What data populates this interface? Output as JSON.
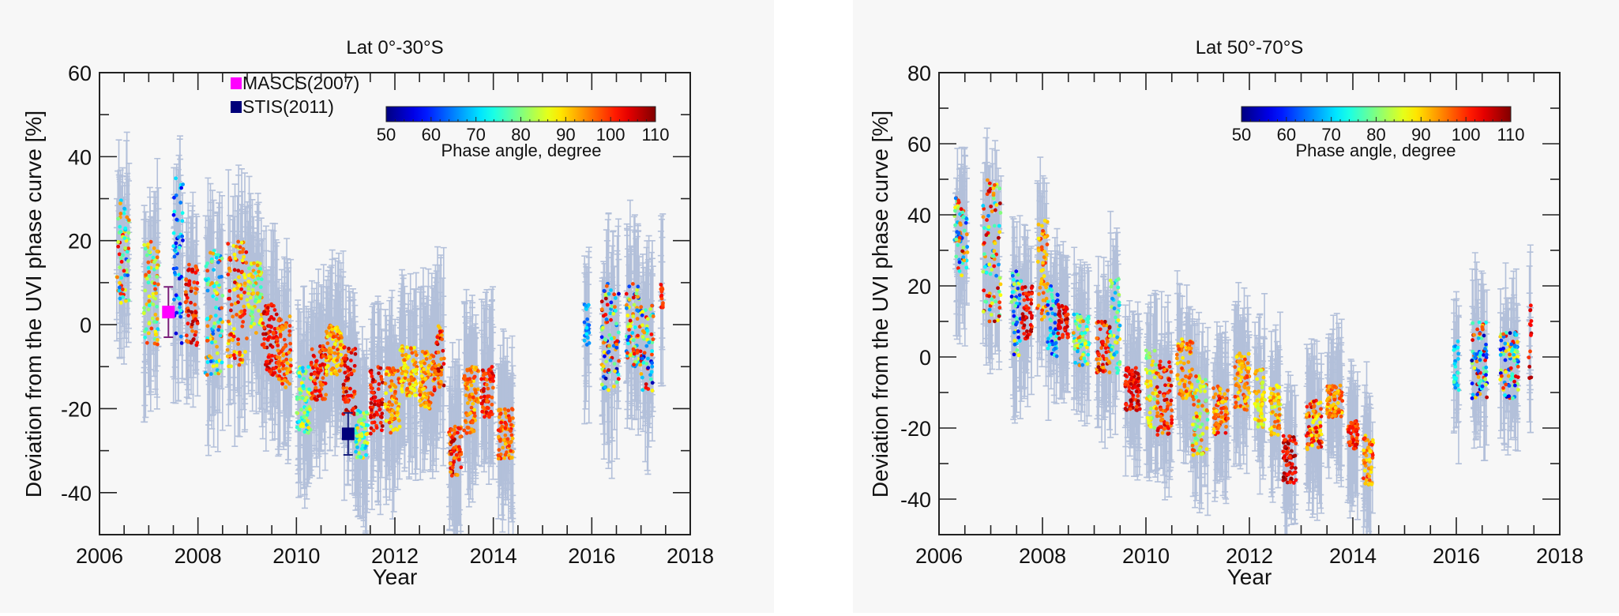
{
  "chart_data": [
    {
      "type": "scatter",
      "title": "Lat 0°-30°S",
      "xlabel": "Year",
      "ylabel": "Deviation from the UVI phase curve [%]",
      "xlim": [
        2006,
        2018
      ],
      "ylim": [
        -50,
        60
      ],
      "xticks": [
        2006,
        2008,
        2010,
        2012,
        2014,
        2016,
        2018
      ],
      "yticks": [
        -40,
        -20,
        0,
        20,
        40,
        60
      ],
      "grid": false,
      "error_bar_color": "#b3c0da",
      "colorbar": {
        "label": "Phase angle, degree",
        "range": [
          50,
          110
        ],
        "ticks": [
          50,
          60,
          70,
          80,
          90,
          100,
          110
        ],
        "colormap": "jet",
        "placement": "top-right"
      },
      "legend": [
        {
          "label": "MASCS(2007)",
          "color": "#ff00ff"
        },
        {
          "label": "STIS(2011)",
          "color": "#00007a"
        }
      ],
      "reference_points": [
        {
          "name": "MASCS(2007)",
          "year": 2007.4,
          "value": 3,
          "error": 6,
          "color": "#ff00ff",
          "error_color": "#7a1f7a"
        },
        {
          "name": "STIS(2011)",
          "year": 2011.05,
          "value": -26,
          "error": 5,
          "color": "#00007a",
          "error_color": "#1a237e"
        }
      ],
      "cluster_columns": [
        "year_start",
        "year_end",
        "deviation_low",
        "deviation_high",
        "phase_low",
        "phase_high"
      ],
      "clusters": [
        [
          2006.35,
          2006.6,
          5,
          30,
          60,
          105
        ],
        [
          2006.9,
          2007.2,
          -5,
          20,
          70,
          100
        ],
        [
          2007.5,
          2007.7,
          -5,
          35,
          55,
          75
        ],
        [
          2007.75,
          2008.0,
          -5,
          15,
          95,
          108
        ],
        [
          2008.15,
          2008.5,
          -12,
          18,
          62,
          100
        ],
        [
          2008.6,
          2009.0,
          -10,
          20,
          85,
          105
        ],
        [
          2009.0,
          2009.3,
          -2,
          15,
          75,
          95
        ],
        [
          2009.3,
          2009.6,
          -12,
          5,
          98,
          108
        ],
        [
          2009.6,
          2009.9,
          -15,
          2,
          90,
          102
        ],
        [
          2010.0,
          2010.3,
          -26,
          -10,
          68,
          90
        ],
        [
          2010.3,
          2010.6,
          -18,
          -5,
          95,
          106
        ],
        [
          2010.6,
          2010.95,
          -12,
          0,
          85,
          100
        ],
        [
          2010.95,
          2011.2,
          -22,
          -5,
          95,
          108
        ],
        [
          2011.2,
          2011.45,
          -32,
          -20,
          68,
          90
        ],
        [
          2011.5,
          2011.75,
          -26,
          -10,
          98,
          108
        ],
        [
          2011.8,
          2012.1,
          -26,
          -10,
          85,
          100
        ],
        [
          2012.1,
          2012.45,
          -17,
          -5,
          85,
          98
        ],
        [
          2012.5,
          2012.8,
          -20,
          -5,
          88,
          100
        ],
        [
          2012.8,
          2013.0,
          -16,
          0,
          90,
          110
        ],
        [
          2013.1,
          2013.35,
          -36,
          -24,
          92,
          108
        ],
        [
          2013.4,
          2013.7,
          -26,
          -10,
          88,
          100
        ],
        [
          2013.75,
          2014.0,
          -22,
          -10,
          95,
          106
        ],
        [
          2014.1,
          2014.4,
          -32,
          -20,
          90,
          102
        ],
        [
          2015.85,
          2015.95,
          -5,
          5,
          62,
          72
        ],
        [
          2016.2,
          2016.55,
          -16,
          10,
          52,
          108
        ],
        [
          2016.7,
          2017.0,
          -10,
          10,
          60,
          105
        ],
        [
          2017.0,
          2017.25,
          -16,
          5,
          52,
          106
        ],
        [
          2017.4,
          2017.45,
          4,
          10,
          98,
          104
        ]
      ]
    },
    {
      "type": "scatter",
      "title": "Lat 50°-70°S",
      "xlabel": "Year",
      "ylabel": "Deviation from the UVI phase curve [%]",
      "xlim": [
        2006,
        2018
      ],
      "ylim": [
        -50,
        80
      ],
      "xticks": [
        2006,
        2008,
        2010,
        2012,
        2014,
        2016,
        2018
      ],
      "yticks": [
        -40,
        -20,
        0,
        20,
        40,
        60,
        80
      ],
      "grid": false,
      "error_bar_color": "#b3c0da",
      "colorbar": {
        "label": "Phase angle, degree",
        "range": [
          50,
          110
        ],
        "ticks": [
          50,
          60,
          70,
          80,
          90,
          100,
          110
        ],
        "colormap": "jet",
        "placement": "top-right"
      },
      "cluster_columns": [
        "year_start",
        "year_end",
        "deviation_low",
        "deviation_high",
        "phase_low",
        "phase_high"
      ],
      "clusters": [
        [
          2006.3,
          2006.55,
          22,
          45,
          58,
          108
        ],
        [
          2006.85,
          2007.2,
          10,
          50,
          65,
          108
        ],
        [
          2007.4,
          2007.6,
          0,
          25,
          55,
          90
        ],
        [
          2007.6,
          2007.8,
          5,
          20,
          98,
          108
        ],
        [
          2007.9,
          2008.1,
          10,
          40,
          88,
          100
        ],
        [
          2008.1,
          2008.3,
          0,
          20,
          58,
          80
        ],
        [
          2008.3,
          2008.5,
          5,
          15,
          98,
          108
        ],
        [
          2008.6,
          2008.9,
          -3,
          12,
          65,
          98
        ],
        [
          2009.05,
          2009.3,
          -5,
          10,
          92,
          108
        ],
        [
          2009.3,
          2009.5,
          -5,
          22,
          65,
          90
        ],
        [
          2009.6,
          2009.9,
          -15,
          -3,
          98,
          108
        ],
        [
          2010.0,
          2010.2,
          -20,
          2,
          78,
          92
        ],
        [
          2010.2,
          2010.5,
          -22,
          0,
          92,
          106
        ],
        [
          2010.6,
          2010.9,
          -12,
          5,
          88,
          100
        ],
        [
          2010.9,
          2011.2,
          -28,
          -5,
          75,
          100
        ],
        [
          2011.3,
          2011.6,
          -22,
          -8,
          88,
          104
        ],
        [
          2011.7,
          2012.0,
          -15,
          2,
          88,
          100
        ],
        [
          2012.1,
          2012.3,
          -20,
          -3,
          82,
          95
        ],
        [
          2012.4,
          2012.6,
          -22,
          -8,
          82,
          98
        ],
        [
          2012.65,
          2012.9,
          -36,
          -22,
          98,
          110
        ],
        [
          2013.1,
          2013.4,
          -26,
          -12,
          85,
          106
        ],
        [
          2013.5,
          2013.8,
          -17,
          -8,
          88,
          100
        ],
        [
          2013.9,
          2014.1,
          -26,
          -18,
          95,
          106
        ],
        [
          2014.2,
          2014.4,
          -36,
          -22,
          88,
          102
        ],
        [
          2015.95,
          2016.05,
          -10,
          5,
          65,
          78
        ],
        [
          2016.3,
          2016.6,
          -12,
          10,
          52,
          108
        ],
        [
          2016.85,
          2017.2,
          -12,
          7,
          52,
          106
        ],
        [
          2017.4,
          2017.45,
          -7,
          15,
          98,
          108
        ]
      ]
    }
  ]
}
